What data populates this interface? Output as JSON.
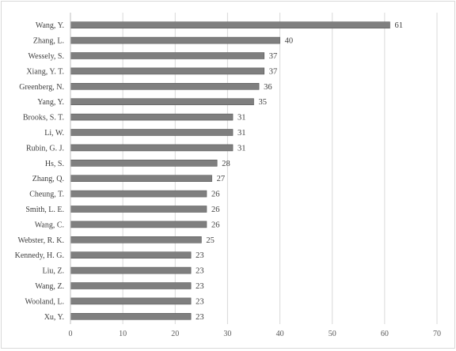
{
  "chart_data": {
    "type": "bar",
    "orientation": "horizontal",
    "categories": [
      "Wang, Y.",
      "Zhang, L.",
      "Wessely, S.",
      "Xiang, Y. T.",
      "Greenberg, N.",
      "Yang, Y.",
      "Brooks, S. T.",
      "Li, W.",
      "Rubin, G. J.",
      "Hs, S.",
      "Zhang, Q.",
      "Cheung, T.",
      "Smith, L. E.",
      "Wang, C.",
      "Webster, R. K.",
      "Kennedy, H. G.",
      "Liu, Z.",
      "Wang, Z.",
      "Wooland, L.",
      "Xu, Y."
    ],
    "values": [
      61,
      40,
      37,
      37,
      36,
      35,
      31,
      31,
      31,
      28,
      27,
      26,
      26,
      26,
      25,
      23,
      23,
      23,
      23,
      23
    ],
    "xlim": [
      0,
      70
    ],
    "xticks": [
      0,
      10,
      20,
      30,
      40,
      50,
      60,
      70
    ],
    "grid": true,
    "data_labels": true,
    "bar_color": "#7f7f7f",
    "grid_color": "#d9d9d9",
    "title": "",
    "xlabel": "",
    "ylabel": ""
  }
}
